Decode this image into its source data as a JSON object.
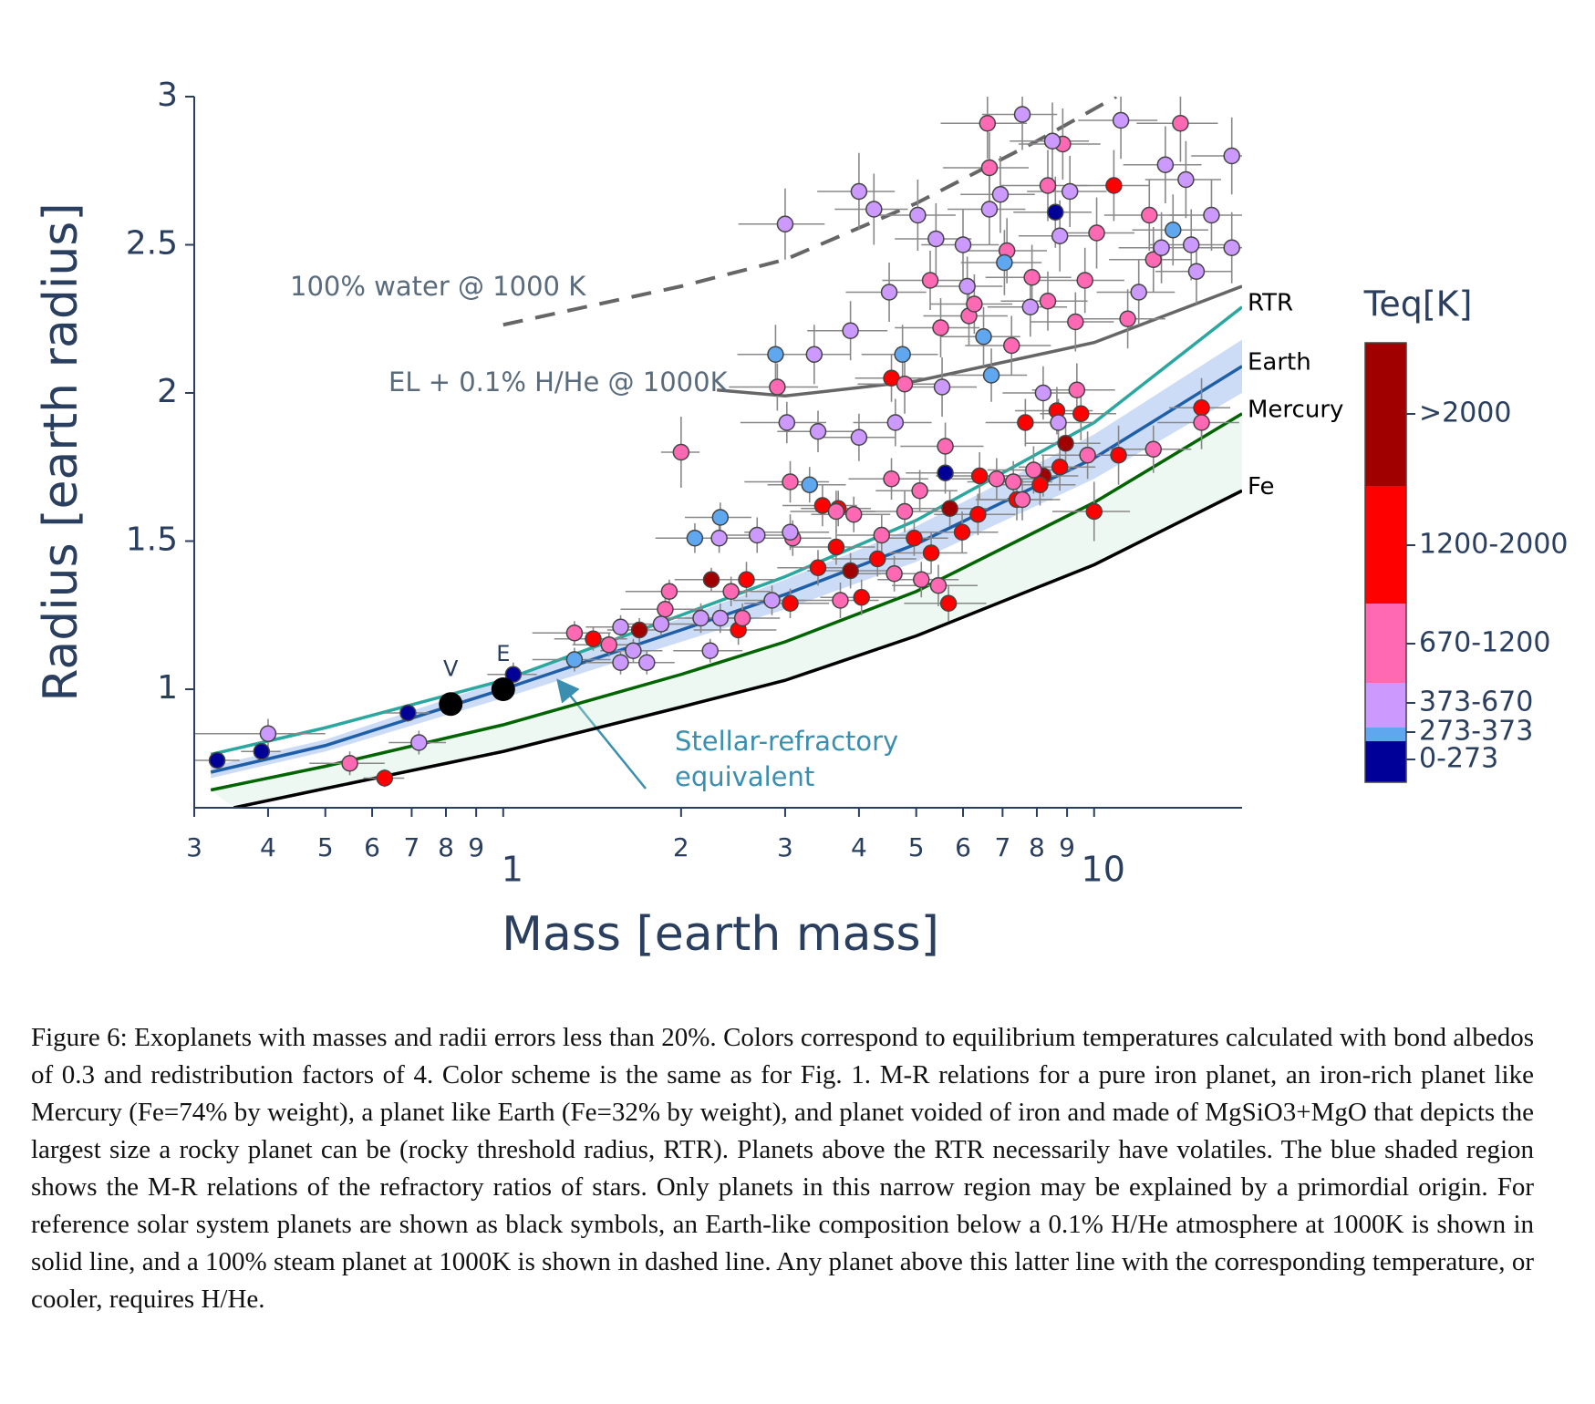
{
  "chart_data": {
    "type": "scatter",
    "xlabel": "Mass [earth mass]",
    "ylabel": "Radius [earth radius]",
    "legend_title": "Teq[K]",
    "log_x": true,
    "xlim": [
      0.3,
      17.8
    ],
    "ylim": [
      0.6,
      3
    ],
    "xticks": [
      {
        "value": 0.3,
        "label": "3"
      },
      {
        "value": 0.4,
        "label": "4"
      },
      {
        "value": 0.5,
        "label": "5"
      },
      {
        "value": 0.6,
        "label": "6"
      },
      {
        "value": 0.7,
        "label": "7"
      },
      {
        "value": 0.8,
        "label": "8"
      },
      {
        "value": 0.9,
        "label": "9"
      },
      1,
      2,
      3,
      4,
      5,
      6,
      7,
      8,
      9,
      10
    ],
    "yticks": [
      1,
      1.5,
      2,
      2.5,
      3
    ],
    "curves": [
      {
        "name": "Fe",
        "color": "#000000",
        "x": [
          0.35,
          0.5,
          1,
          2,
          3,
          5,
          10,
          17.8
        ],
        "y": [
          0.6,
          0.665,
          0.79,
          0.94,
          1.03,
          1.18,
          1.42,
          1.67
        ]
      },
      {
        "name": "Mercury",
        "color": "#006400",
        "x": [
          0.32,
          0.5,
          1,
          2,
          3,
          5,
          10,
          17.8
        ],
        "y": [
          0.66,
          0.74,
          0.88,
          1.05,
          1.16,
          1.33,
          1.63,
          1.93
        ]
      },
      {
        "name": "Earth",
        "color": "#1f5fa8",
        "x": [
          0.32,
          0.5,
          1,
          2,
          3,
          5,
          10,
          17.8
        ],
        "y": [
          0.72,
          0.81,
          1.0,
          1.2,
          1.32,
          1.49,
          1.78,
          2.09
        ]
      },
      {
        "name": "RTR",
        "color": "#2aa8a0",
        "x": [
          0.32,
          0.5,
          1,
          2,
          3,
          5,
          10,
          17.8
        ],
        "y": [
          0.78,
          0.87,
          1.03,
          1.25,
          1.38,
          1.57,
          1.9,
          2.29
        ]
      },
      {
        "name": "EL + 0.1% H/He @ 1000K",
        "color": "#666666",
        "x": [
          2.3,
          3,
          5,
          10,
          17.8
        ],
        "y": [
          2.01,
          1.99,
          2.04,
          2.17,
          2.36
        ]
      },
      {
        "name": "100% water @ 1000 K",
        "color": "#666666",
        "dashed": true,
        "x": [
          1,
          2,
          3,
          5,
          8,
          10.9
        ],
        "y": [
          2.23,
          2.36,
          2.45,
          2.64,
          2.85,
          3.0
        ]
      }
    ],
    "band": {
      "name": "Stellar-refractory equivalent",
      "color": "#6f9be6",
      "x": [
        0.32,
        0.5,
        1,
        2,
        3,
        5,
        10,
        17.8
      ],
      "lower": [
        0.7,
        0.79,
        0.97,
        1.16,
        1.27,
        1.43,
        1.71,
        2.0
      ],
      "upper": [
        0.74,
        0.83,
        1.03,
        1.24,
        1.37,
        1.55,
        1.86,
        2.18
      ]
    },
    "solar_system": {
      "names": [
        "V",
        "E"
      ],
      "x": [
        0.815,
        1
      ],
      "y": [
        0.95,
        1.0
      ]
    },
    "series": [
      {
        "name": ">2000",
        "color": "#a00000",
        "x": [
          1.7,
          2.25,
          3.87,
          5.7,
          8.2,
          8.95
        ],
        "y": [
          1.2,
          1.37,
          1.4,
          1.61,
          1.72,
          1.83
        ],
        "xerr": [
          0.2,
          0.3,
          0.6,
          0.9,
          1.2,
          1.3
        ],
        "yerr": [
          0.04,
          0.04,
          0.06,
          0.06,
          0.07,
          0.08
        ]
      },
      {
        "name": "1200-2000",
        "color": "#ff0000",
        "x": [
          0.63,
          1.42,
          2.5,
          2.58,
          3.06,
          3.41,
          3.47,
          3.66,
          3.69,
          4.04,
          4.3,
          4.54,
          4.96,
          5.3,
          5.67,
          5.98,
          6.36,
          6.4,
          7.4,
          7.65,
          8.1,
          8.65,
          8.75,
          9.5,
          10,
          10.8,
          11.0,
          15.2
        ],
        "y": [
          0.7,
          1.17,
          1.2,
          1.37,
          1.29,
          1.41,
          1.62,
          1.48,
          1.61,
          1.31,
          1.44,
          2.05,
          1.51,
          1.46,
          1.29,
          1.53,
          1.59,
          1.72,
          1.64,
          1.9,
          1.69,
          1.94,
          1.75,
          1.93,
          1.6,
          2.7,
          1.79,
          1.95
        ],
        "xerr": [
          0.05,
          0.2,
          0.4,
          0.3,
          0.5,
          0.5,
          0.5,
          0.6,
          0.5,
          0.6,
          0.7,
          0.6,
          0.7,
          0.8,
          0.9,
          0.9,
          1.0,
          1.0,
          1.1,
          1.1,
          1.2,
          1.3,
          1.3,
          1.4,
          1.5,
          1.6,
          1.6,
          1.8
        ],
        "yerr": [
          0.03,
          0.04,
          0.05,
          0.06,
          0.05,
          0.06,
          0.07,
          0.06,
          0.06,
          0.06,
          0.06,
          0.08,
          0.06,
          0.07,
          0.06,
          0.07,
          0.07,
          0.08,
          0.07,
          0.08,
          0.07,
          0.08,
          0.08,
          0.09,
          0.1,
          0.12,
          0.1,
          0.1
        ]
      },
      {
        "name": "670-1200",
        "color": "#ff69b4",
        "x": [
          0.55,
          1.32,
          1.51,
          1.91,
          1.88,
          2.0,
          2.43,
          2.54,
          2.91,
          3.06,
          3.09,
          3.66,
          3.72,
          3.92,
          4.37,
          4.54,
          4.59,
          4.78,
          4.78,
          5.07,
          5.1,
          5.28,
          5.45,
          5.5,
          5.6,
          6.14,
          6.27,
          6.6,
          6.65,
          6.84,
          7.12,
          7.25,
          7.3,
          7.56,
          7.85,
          7.9,
          8.35,
          8.35,
          8.85,
          9.3,
          9.35,
          9.65,
          9.75,
          10.1,
          11.4,
          12.4,
          12.6,
          12.6,
          14.0,
          15.2
        ],
        "y": [
          0.75,
          1.19,
          1.15,
          1.33,
          1.27,
          1.8,
          1.33,
          1.24,
          2.02,
          1.7,
          1.51,
          1.6,
          1.3,
          1.59,
          1.52,
          1.71,
          1.39,
          2.03,
          1.6,
          1.67,
          1.37,
          2.38,
          1.35,
          2.22,
          1.82,
          2.26,
          2.3,
          2.91,
          2.76,
          1.71,
          2.48,
          2.16,
          1.7,
          1.64,
          2.39,
          1.74,
          2.31,
          2.7,
          2.84,
          2.24,
          2.01,
          2.38,
          1.79,
          2.54,
          2.25,
          2.6,
          1.81,
          2.45,
          2.91,
          1.9
        ],
        "xerr": [
          0.08,
          0.2,
          0.2,
          0.3,
          0.3,
          0.15,
          0.4,
          0.4,
          0.5,
          0.5,
          0.5,
          0.6,
          0.6,
          0.6,
          0.7,
          0.7,
          0.7,
          0.8,
          0.8,
          0.8,
          0.8,
          0.9,
          0.9,
          0.9,
          0.9,
          1.0,
          1.0,
          1.1,
          1.1,
          1.1,
          1.2,
          1.2,
          1.2,
          1.2,
          1.3,
          1.3,
          1.4,
          1.4,
          1.4,
          1.5,
          1.5,
          1.6,
          1.6,
          1.6,
          1.8,
          2.0,
          2.0,
          2.0,
          2.2,
          2.4
        ],
        "yerr": [
          0.04,
          0.04,
          0.04,
          0.04,
          0.04,
          0.12,
          0.05,
          0.05,
          0.08,
          0.07,
          0.06,
          0.07,
          0.06,
          0.06,
          0.07,
          0.07,
          0.06,
          0.1,
          0.07,
          0.07,
          0.06,
          0.1,
          0.07,
          0.1,
          0.08,
          0.1,
          0.1,
          0.12,
          0.12,
          0.07,
          0.11,
          0.1,
          0.07,
          0.07,
          0.11,
          0.08,
          0.1,
          0.12,
          0.12,
          0.1,
          0.09,
          0.11,
          0.08,
          0.12,
          0.1,
          0.12,
          0.08,
          0.11,
          0.13,
          0.09
        ]
      },
      {
        "name": "373-670",
        "color": "#cc99ff",
        "x": [
          0.4,
          0.72,
          1.58,
          1.66,
          1.58,
          1.75,
          1.85,
          2.32,
          2.16,
          2.24,
          2.33,
          2.69,
          2.85,
          3.0,
          3.02,
          3.06,
          3.36,
          3.41,
          3.87,
          4.0,
          4.0,
          4.24,
          4.5,
          4.61,
          5.03,
          5.4,
          5.53,
          6.0,
          6.1,
          6.65,
          6.94,
          7.56,
          7.8,
          8.2,
          8.5,
          8.7,
          8.75,
          9.1,
          11.1,
          11.9,
          13.0,
          13.2,
          14.3,
          14.6,
          14.9,
          15.8,
          17.1,
          17.1
        ],
        "y": [
          0.85,
          0.82,
          1.21,
          1.13,
          1.09,
          1.09,
          1.22,
          1.51,
          1.24,
          1.13,
          1.24,
          1.52,
          1.3,
          2.57,
          1.9,
          1.53,
          2.13,
          1.87,
          2.21,
          2.68,
          1.85,
          2.62,
          2.34,
          1.9,
          2.6,
          2.52,
          2.02,
          2.5,
          2.36,
          2.62,
          2.67,
          2.94,
          2.29,
          2.0,
          2.85,
          1.9,
          2.53,
          2.68,
          2.92,
          2.34,
          2.49,
          2.77,
          2.72,
          2.5,
          2.41,
          2.6,
          2.8,
          2.49
        ],
        "xerr": [
          0.1,
          0.08,
          0.2,
          0.2,
          0.2,
          0.2,
          0.3,
          0.3,
          0.3,
          0.3,
          0.3,
          0.4,
          0.4,
          0.5,
          0.5,
          0.5,
          0.5,
          0.5,
          0.6,
          0.6,
          0.6,
          0.6,
          0.7,
          0.7,
          0.8,
          0.8,
          0.8,
          0.9,
          0.9,
          1.0,
          1.0,
          1.1,
          1.2,
          1.2,
          1.3,
          1.3,
          1.3,
          1.4,
          1.7,
          1.8,
          2.0,
          2.0,
          2.1,
          2.2,
          2.2,
          2.4,
          2.5,
          2.5
        ],
        "yerr": [
          0.05,
          0.04,
          0.04,
          0.04,
          0.04,
          0.04,
          0.04,
          0.05,
          0.05,
          0.04,
          0.05,
          0.06,
          0.05,
          0.12,
          0.07,
          0.06,
          0.1,
          0.07,
          0.1,
          0.13,
          0.08,
          0.12,
          0.1,
          0.08,
          0.12,
          0.12,
          0.1,
          0.12,
          0.1,
          0.12,
          0.13,
          0.12,
          0.1,
          0.09,
          0.13,
          0.08,
          0.12,
          0.12,
          0.13,
          0.11,
          0.12,
          0.13,
          0.13,
          0.12,
          0.11,
          0.12,
          0.13,
          0.12
        ]
      },
      {
        "name": "273-373",
        "color": "#5fa8f0",
        "x": [
          1.32,
          2.11,
          2.33,
          2.89,
          3.3,
          4.74,
          6.5,
          6.7,
          7.05,
          13.6
        ],
        "y": [
          1.1,
          1.51,
          1.58,
          2.13,
          1.69,
          2.13,
          2.19,
          2.06,
          2.44,
          2.55
        ],
        "xerr": [
          0.2,
          0.3,
          0.3,
          0.4,
          0.5,
          0.7,
          1.0,
          1.0,
          1.1,
          2.0
        ],
        "yerr": [
          0.04,
          0.05,
          0.05,
          0.1,
          0.06,
          0.1,
          0.1,
          0.09,
          0.11,
          0.12
        ]
      },
      {
        "name": "0-273",
        "color": "#000099",
        "x": [
          0.328,
          0.39,
          0.69,
          1.04,
          5.6,
          8.6
        ],
        "y": [
          0.76,
          0.79,
          0.92,
          1.05,
          1.73,
          2.61
        ],
        "xerr": [
          0.03,
          0.03,
          0.06,
          0.1,
          0.8,
          1.3
        ],
        "yerr": [
          0.02,
          0.03,
          0.03,
          0.04,
          0.07,
          0.12
        ]
      }
    ],
    "annotations": [
      "Stellar-refractory",
      "equivalent"
    ]
  },
  "caption": "Figure 6: Exoplanets with masses and radii errors less than 20%. Colors correspond to equilibrium temperatures calculated with bond albedos of 0.3 and redistribution factors of 4. Color scheme is the same as for Fig. 1. M-R relations for a pure iron planet, an iron-rich planet like Mercury (Fe=74% by weight), a planet like Earth (Fe=32% by weight), and planet voided of iron and made of MgSiO3+MgO that depicts the largest size a rocky planet can be (rocky threshold radius, RTR). Planets above the RTR necessarily have volatiles. The blue shaded region shows the M-R relations of the refractory ratios of stars. Only planets in this narrow region may be explained by a primordial origin. For reference solar system planets are shown as black symbols, an Earth-like composition below a 0.1% H/He atmosphere at 1000K is shown in solid line, and a 100% steam planet at 1000K is shown in dashed line. Any planet above this latter line with the corresponding temperature, or cooler, requires H/He."
}
